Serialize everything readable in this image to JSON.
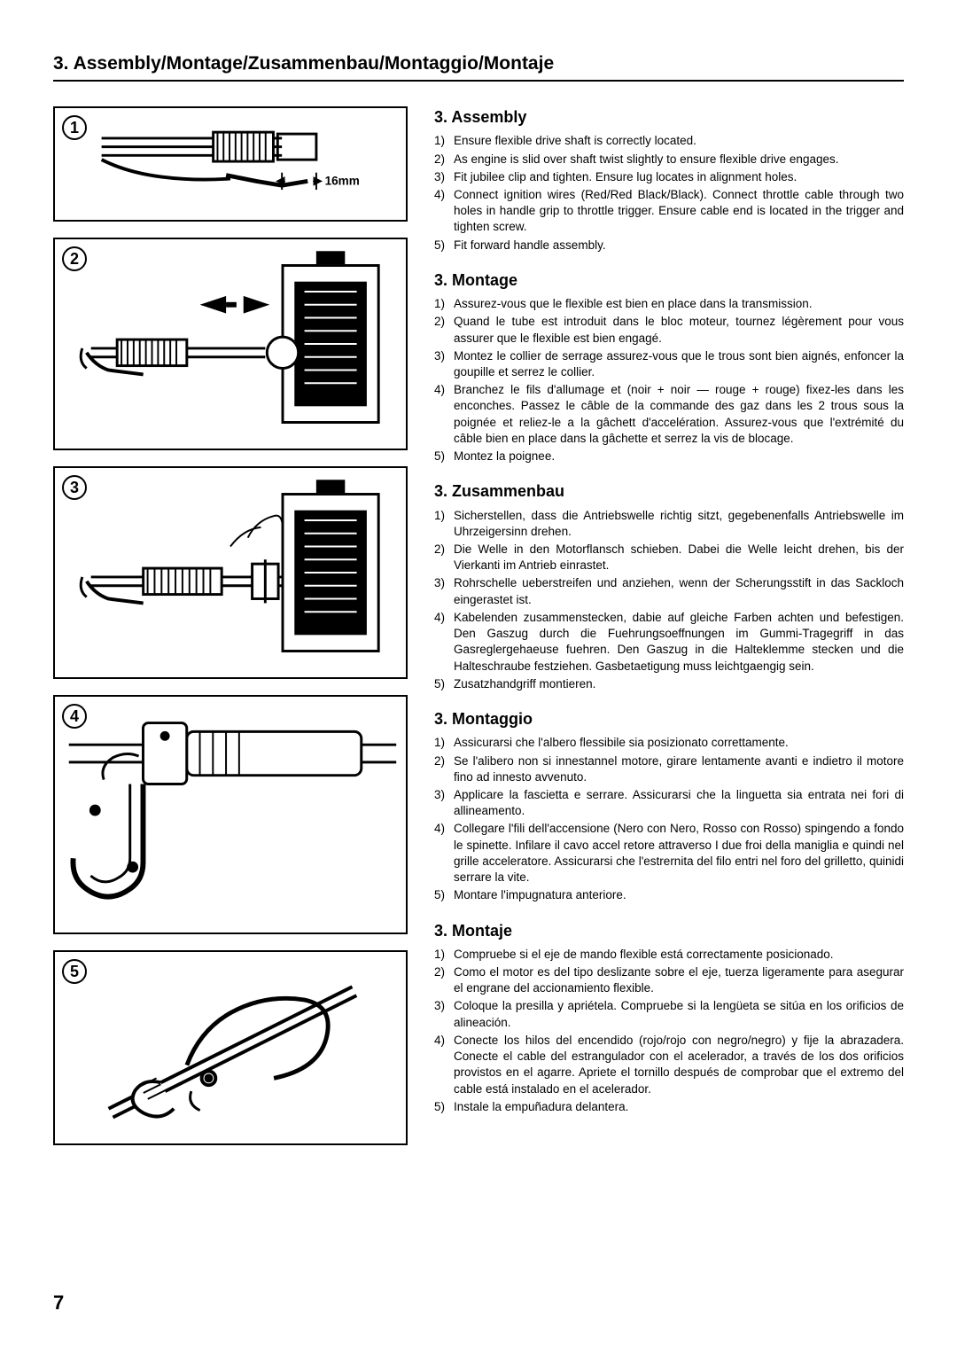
{
  "section_heading": "3. Assembly/Montage/Zusammenbau/Montaggio/Montaje",
  "page_number": "7",
  "figures": {
    "nums": [
      "1",
      "2",
      "3",
      "4",
      "5"
    ],
    "fig1_label": "16mm"
  },
  "languages": [
    {
      "title": "3. Assembly",
      "steps": [
        "Ensure flexible drive shaft is correctly located.",
        "As engine is slid over shaft twist slightly to ensure flexible drive engages.",
        "Fit jubilee clip and tighten. Ensure lug locates in alignment holes.",
        "Connect ignition wires (Red/Red Black/Black). Connect throttle cable through two holes in handle grip to throttle trigger. Ensure cable end is located in the trigger and tighten screw.",
        "Fit forward handle assembly."
      ]
    },
    {
      "title": "3. Montage",
      "steps": [
        "Assurez-vous que le flexible est bien en place dans la transmission.",
        "Quand le tube est introduit dans le bloc moteur, tournez légèrement pour vous assurer que le flexible est bien engagé.",
        "Montez le collier de serrage assurez-vous que le trous sont bien aignés, enfoncer la goupille et serrez le collier.",
        "Branchez le fils d'allumage et (noir + noir — rouge + rouge) fixez-les dans les enconches. Passez le câble de la commande des gaz dans les 2 trous sous la poignée et reliez-le a la gâchett d'accelération. Assurez-vous que l'extrémité du câble bien en place dans la gâchette et serrez la vis de blocage.",
        "Montez la poignee."
      ]
    },
    {
      "title": "3. Zusammenbau",
      "steps": [
        "Sicherstellen, dass die Antriebswelle richtig sitzt, gegebenenfalls Antriebswelle im Uhrzeigersinn drehen.",
        "Die Welle in den Motorflansch schieben. Dabei die Welle leicht drehen, bis der Vierkanti im Antrieb einrastet.",
        "Rohrschelle ueberstreifen und anziehen, wenn der Scherungsstift in das Sackloch eingerastet ist.",
        "Kabelenden zusammenstecken, dabie auf gleiche Farben achten und befestigen. Den Gaszug durch die Fuehrungsoeffnungen im Gummi-Tragegriff in das Gasreglergehaeuse fuehren. Den Gaszug in die Halteklemme stecken und die Halteschraube festziehen. Gasbetaetigung muss leichtgaengig sein.",
        "Zusatzhandgriff montieren."
      ]
    },
    {
      "title": "3. Montaggio",
      "steps": [
        "Assicurarsi che l'albero flessibile sia posizionato correttamente.",
        "Se l'alibero non si innestannel motore, girare lentamente avanti e indietro il motore fino ad innesto avvenuto.",
        "Applicare la fascietta e serrare. Assicurarsi che la linguetta sia entrata nei fori di allineamento.",
        "Collegare l'fili dell'accensione (Nero con Nero, Rosso con Rosso) spingendo a fondo le spinette. Infilare il cavo accel retore attraverso I due froi della maniglia e quindi nel grille acceleratore. Assicurarsi che l'estrernita del filo entri nel foro del grilletto, quinidi serrare la vite.",
        "Montare l'impugnatura anteriore."
      ]
    },
    {
      "title": "3. Montaje",
      "steps": [
        "Compruebe si el eje de mando flexible está correctamente posicionado.",
        "Como el motor es del tipo deslizante sobre el eje, tuerza ligeramente para asegurar el engrane del accionamiento flexible.",
        "Coloque la presilla y apriétela. Compruebe si la lengüeta se sitúa en los orificios de alineación.",
        "Conecte los hilos del encendido (rojo/rojo con negro/negro) y fije la abrazadera. Conecte el cable del estrangulador con el acelerador, a través de los dos orificios provistos en el agarre. Apriete el tornillo después de comprobar que el extremo del cable está instalado en el acelerador.",
        "Instale la empuñadura delantera."
      ]
    }
  ]
}
